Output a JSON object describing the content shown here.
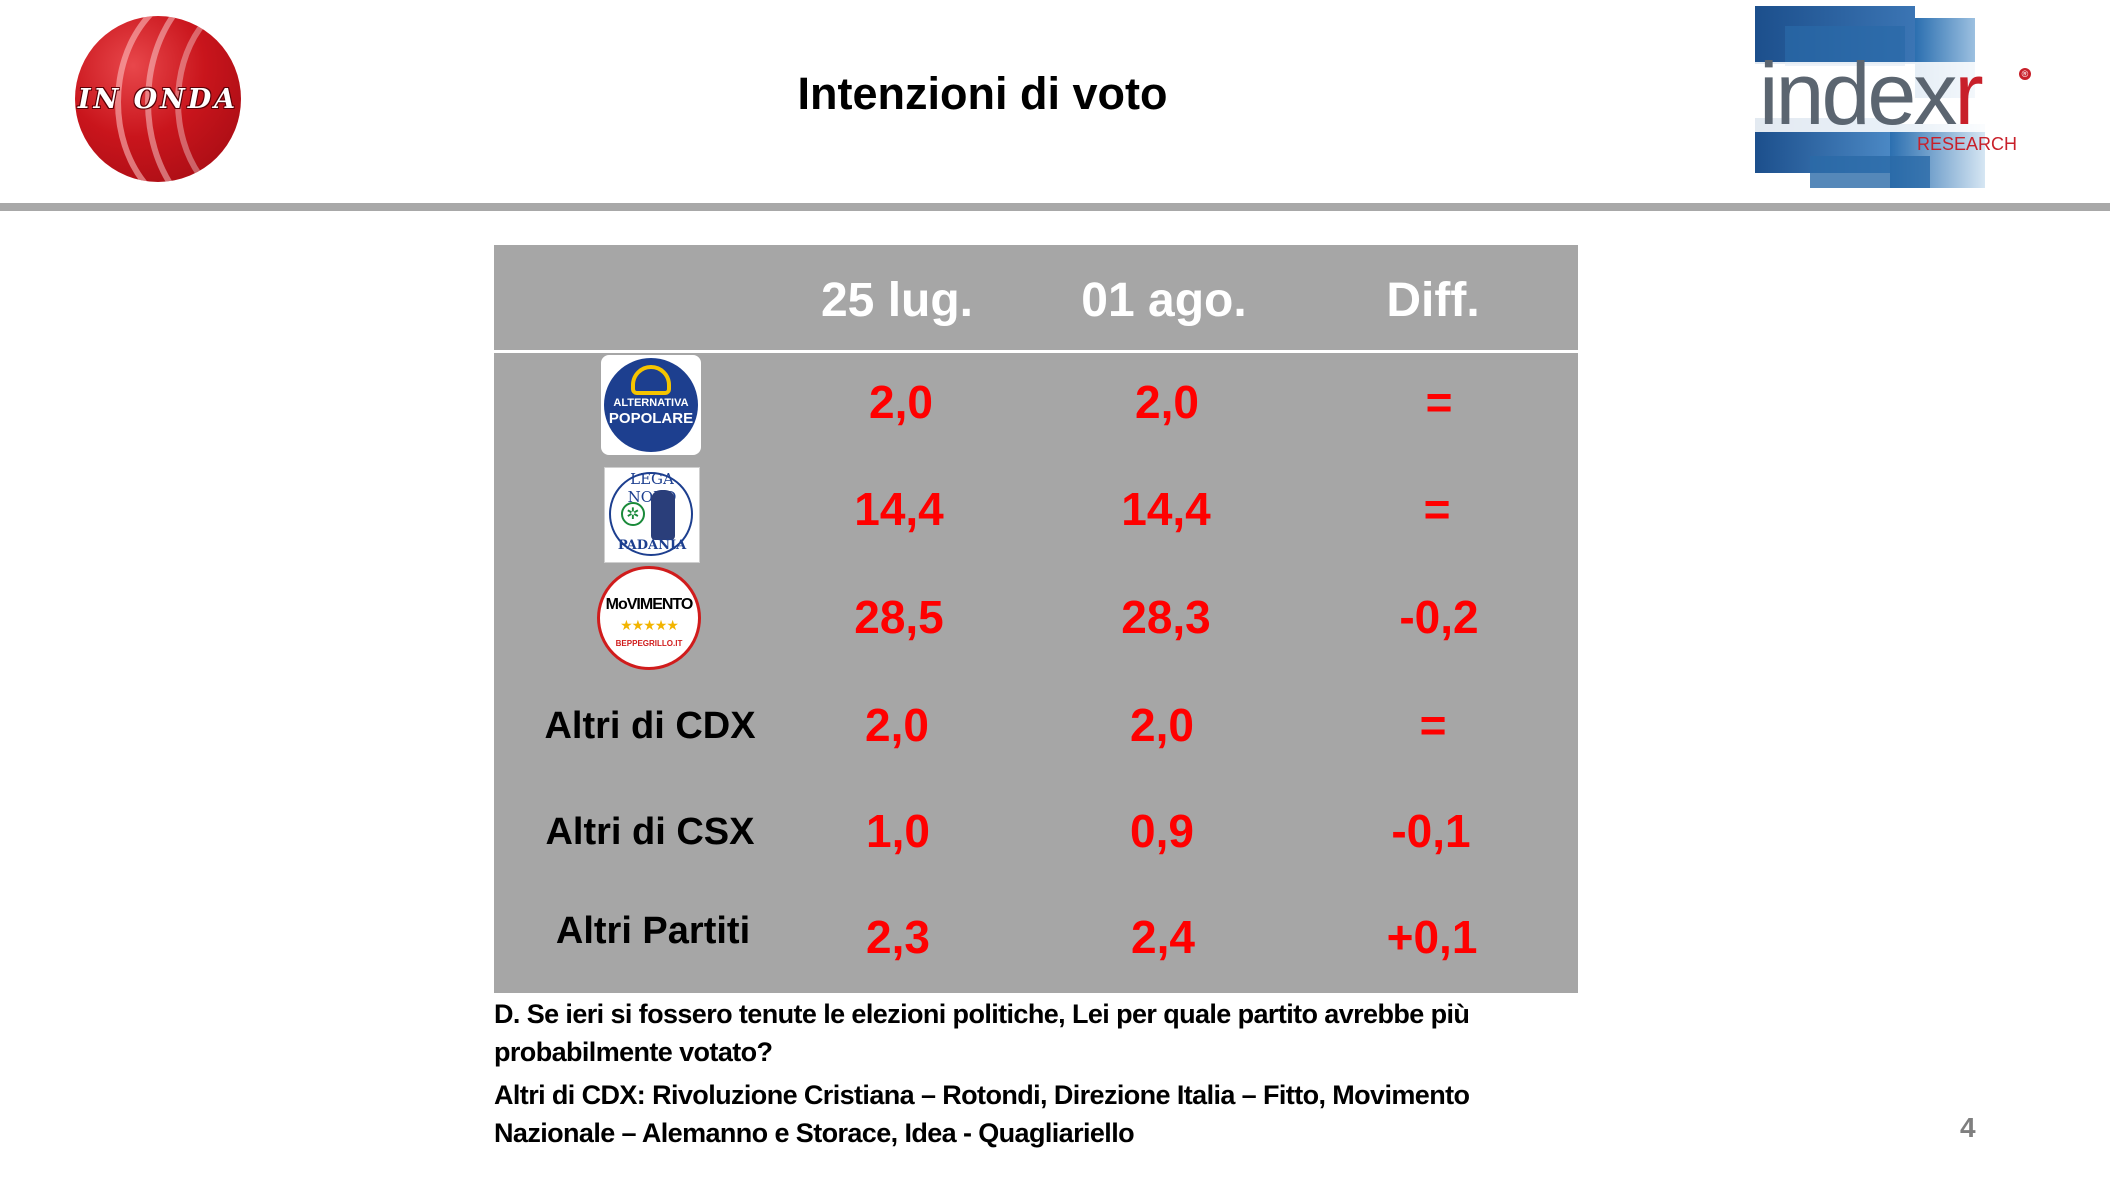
{
  "header": {
    "logo_left_text": "IN ONDA",
    "title": "Intenzioni di voto",
    "logo_right_text": "index",
    "logo_right_accent": "r",
    "logo_right_sub": "RESEARCH"
  },
  "table": {
    "columns": [
      "25 lug.",
      "01 ago.",
      "Diff."
    ],
    "rows": [
      {
        "party": "ALTERNATIVA POPOLARE",
        "logo": "alternativa-popolare-logo",
        "v1": "2,0",
        "v2": "2,0",
        "diff": "="
      },
      {
        "party": "LEGA NORD PADANIA",
        "logo": "lega-nord-logo",
        "v1": "14,4",
        "v2": "14,4",
        "diff": "="
      },
      {
        "party": "MoVIMENTO BEPPEGRILLO.IT",
        "logo": "movimento-5-stelle-logo",
        "v1": "28,5",
        "v2": "28,3",
        "diff": "-0,2"
      },
      {
        "party": "Altri di CDX",
        "v1": "2,0",
        "v2": "2,0",
        "diff": "="
      },
      {
        "party": "Altri di CSX",
        "v1": "1,0",
        "v2": "0,9",
        "diff": "-0,1"
      },
      {
        "party": "Altri Partiti",
        "v1": "2,3",
        "v2": "2,4",
        "diff": "+0,1"
      }
    ],
    "logo_texts": {
      "ap_line1": "ALTERNATIVA",
      "ap_line2": "POPOLARE",
      "ln_top": "LEGA NORD",
      "ln_bottom": "PADANIA",
      "m5s_name": "MoVIMENTO",
      "m5s_stars": "★★★★★",
      "m5s_site": "BEPPEGRILLO.IT"
    }
  },
  "footnote": {
    "question": "D. Se ieri si fossero tenute le elezioni politiche, Lei per  quale partito avrebbe più probabilmente votato?",
    "note": "Altri di CDX: Rivoluzione Cristiana – Rotondi, Direzione Italia – Fitto, Movimento Nazionale – Alemanno e Storace, Idea - Quagliariello"
  },
  "page_number": "4",
  "colors": {
    "table_bg": "#a6a6a6",
    "value_red": "#ff0000",
    "header_white": "#ffffff",
    "rule_gray": "#a8a8a8"
  }
}
